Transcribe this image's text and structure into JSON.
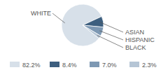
{
  "chart_data": {
    "type": "pie",
    "categories": [
      "WHITE",
      "ASIAN",
      "HISPANIC",
      "BLACK"
    ],
    "values": [
      82.2,
      8.4,
      7.0,
      2.3
    ],
    "value_labels": [
      "82.2%",
      "8.4%",
      "7.0%",
      "2.3%"
    ],
    "colors": [
      "#d7e0e9",
      "#3d5f7f",
      "#7d98b3",
      "#b5c5d5"
    ]
  }
}
